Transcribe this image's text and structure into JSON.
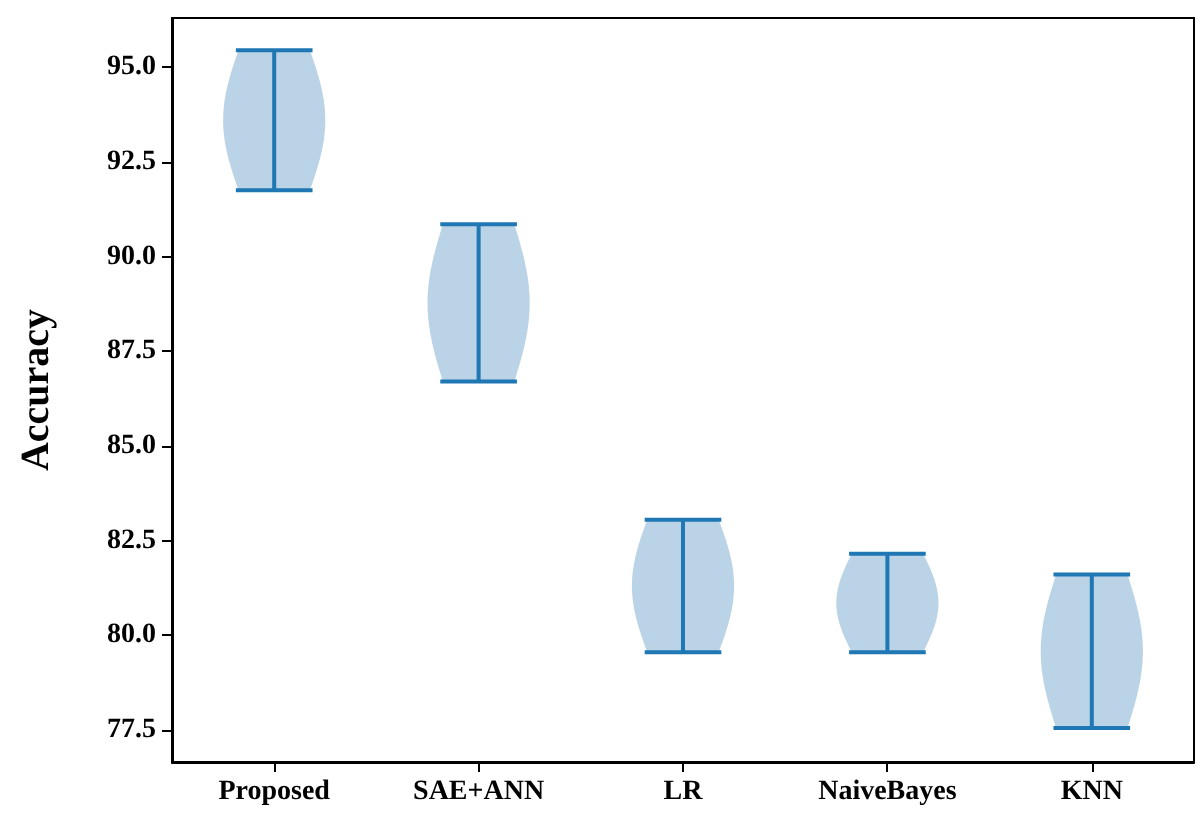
{
  "chart_data": {
    "type": "bar",
    "ylabel": "Accuracy",
    "categories": [
      "Proposed",
      "SAE+ANN",
      "LR",
      "NaiveBayes",
      "KNN"
    ],
    "base": [
      91.75,
      86.7,
      79.55,
      79.55,
      77.55
    ],
    "values": [
      3.7,
      4.15,
      3.5,
      2.6,
      4.05
    ],
    "errors": [
      [
        91.75,
        95.45
      ],
      [
        86.7,
        90.85
      ],
      [
        79.55,
        83.05
      ],
      [
        79.55,
        82.15
      ],
      [
        77.55,
        81.6
      ]
    ],
    "color": "#bad3e6",
    "ylim": [
      76.65,
      96.3
    ],
    "yticks": [
      {
        "value": 77.5,
        "label": "77.5"
      },
      {
        "value": 80,
        "label": "80.0"
      },
      {
        "value": 82.5,
        "label": "82.5"
      },
      {
        "value": 85,
        "label": "85.0"
      },
      {
        "value": 87.5,
        "label": "87.5"
      },
      {
        "value": 90,
        "label": "90.0"
      },
      {
        "value": 92.5,
        "label": "92.5"
      },
      {
        "value": 95,
        "label": "95.0"
      }
    ],
    "grid": false
  }
}
